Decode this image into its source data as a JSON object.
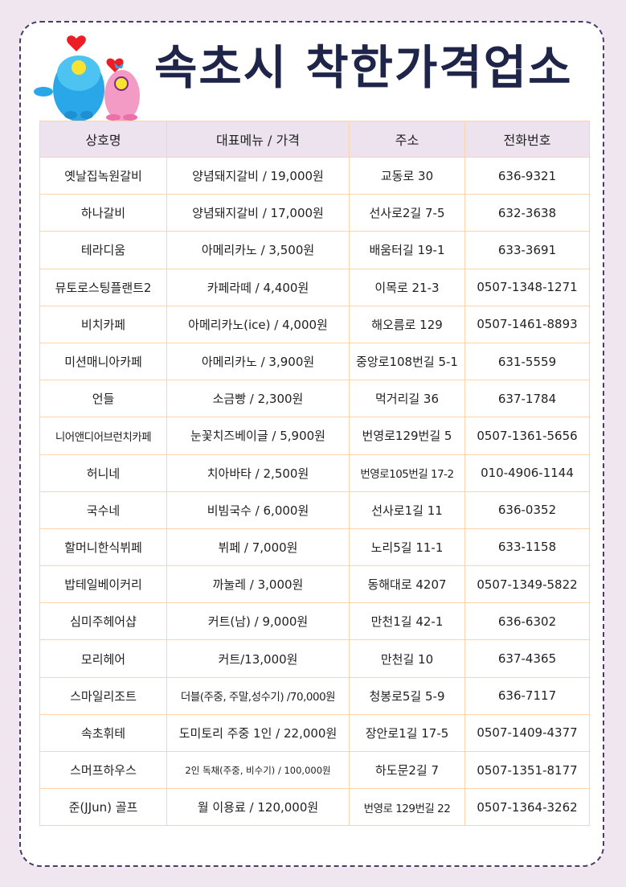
{
  "title": "속초시 착한가격업소",
  "table": {
    "headers": [
      "상호명",
      "대표메뉴 / 가격",
      "주소",
      "전화번호"
    ],
    "rows": [
      [
        "옛날집녹원갈비",
        "양념돼지갈비 / 19,000원",
        "교동로 30",
        "636-9321"
      ],
      [
        "하나갈비",
        "양념돼지갈비 / 17,000원",
        "선사로2길 7-5",
        "632-3638"
      ],
      [
        "테라디움",
        "아메리카노 / 3,500원",
        "배움터길 19-1",
        "633-3691"
      ],
      [
        "뮤토로스팅플랜트2",
        "카페라떼 / 4,400원",
        "이목로 21-3",
        "0507-1348-1271"
      ],
      [
        "비치카페",
        "아메리카노(ice) / 4,000원",
        "해오름로 129",
        "0507-1461-8893"
      ],
      [
        "미션매니아카페",
        "아메리카노 / 3,900원",
        "중앙로108번길 5-1",
        "631-5559"
      ],
      [
        "언들",
        "소금빵 / 2,300원",
        "먹거리길 36",
        "637-1784"
      ],
      [
        "니어앤디어브런치카페",
        "눈꽃치즈베이글 / 5,900원",
        "번영로129번길 5",
        "0507-1361-5656"
      ],
      [
        "허니네",
        "치아바타 / 2,500원",
        "번영로105번길 17-2",
        "010-4906-1144"
      ],
      [
        "국수네",
        "비빔국수 / 6,000원",
        "선사로1길 11",
        "636-0352"
      ],
      [
        "할머니한식뷔페",
        "뷔페 / 7,000원",
        "노리5길 11-1",
        "633-1158"
      ],
      [
        "밥테일베이커리",
        "까눌레 / 3,000원",
        "동해대로 4207",
        "0507-1349-5822"
      ],
      [
        "심미주헤어샵",
        "커트(남) / 9,000원",
        "만천1길 42-1",
        "636-6302"
      ],
      [
        "모리헤어",
        "커트/13,000원",
        "만천길 10",
        "637-4365"
      ],
      [
        "스마일리조트",
        "더블(주중, 주말,성수기) /70,000원",
        "청봉로5길 5-9",
        "636-7117"
      ],
      [
        "속초휘테",
        "도미토리 주중 1인 / 22,000원",
        "장안로1길 17-5",
        "0507-1409-4377"
      ],
      [
        "스머프하우스",
        "2인 독채(주중, 비수기) / 100,000원",
        "하도문2길 7",
        "0507-1351-8177"
      ],
      [
        "준(JJun) 골프",
        "월 이용료 / 120,000원",
        "번영로 129번길 22",
        "0507-1364-3262"
      ]
    ]
  },
  "colors": {
    "background": "#efe6ef",
    "title": "#1f2449",
    "border": "#fbd4a8",
    "header_bg": "#ede3ef",
    "frame": "#4b3c6b"
  }
}
